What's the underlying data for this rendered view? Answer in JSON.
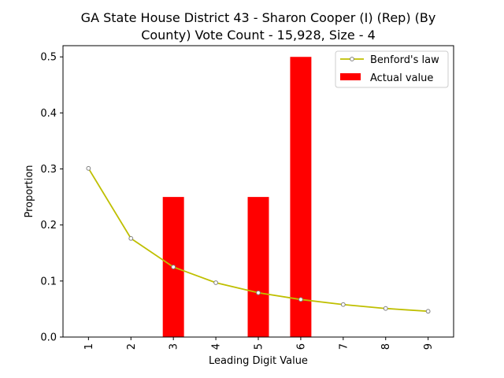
{
  "chart_data": {
    "type": "bar",
    "title_lines": [
      "GA State House District 43 - Sharon Cooper (I) (Rep) (By",
      "County) Vote Count - 15,928, Size - 4"
    ],
    "xlabel": "Leading Digit Value",
    "ylabel": "Proportion",
    "categories": [
      "1",
      "2",
      "3",
      "4",
      "5",
      "6",
      "7",
      "8",
      "9"
    ],
    "ylim": [
      0,
      0.52
    ],
    "yticks": [
      0.0,
      0.1,
      0.2,
      0.3,
      0.4,
      0.5
    ],
    "ytick_labels": [
      "0.0",
      "0.1",
      "0.2",
      "0.3",
      "0.4",
      "0.5"
    ],
    "grid": false,
    "legend_position": "top-right",
    "series": [
      {
        "name": "Benford's law",
        "kind": "line",
        "color": "#bfbf00",
        "marker_edge": "#808080",
        "values": [
          0.301,
          0.176,
          0.125,
          0.097,
          0.079,
          0.067,
          0.058,
          0.051,
          0.046
        ]
      },
      {
        "name": "Actual value",
        "kind": "bar",
        "color": "#ff0000",
        "values": [
          0,
          0,
          0.25,
          0,
          0.25,
          0.5,
          0,
          0,
          0
        ]
      }
    ]
  }
}
